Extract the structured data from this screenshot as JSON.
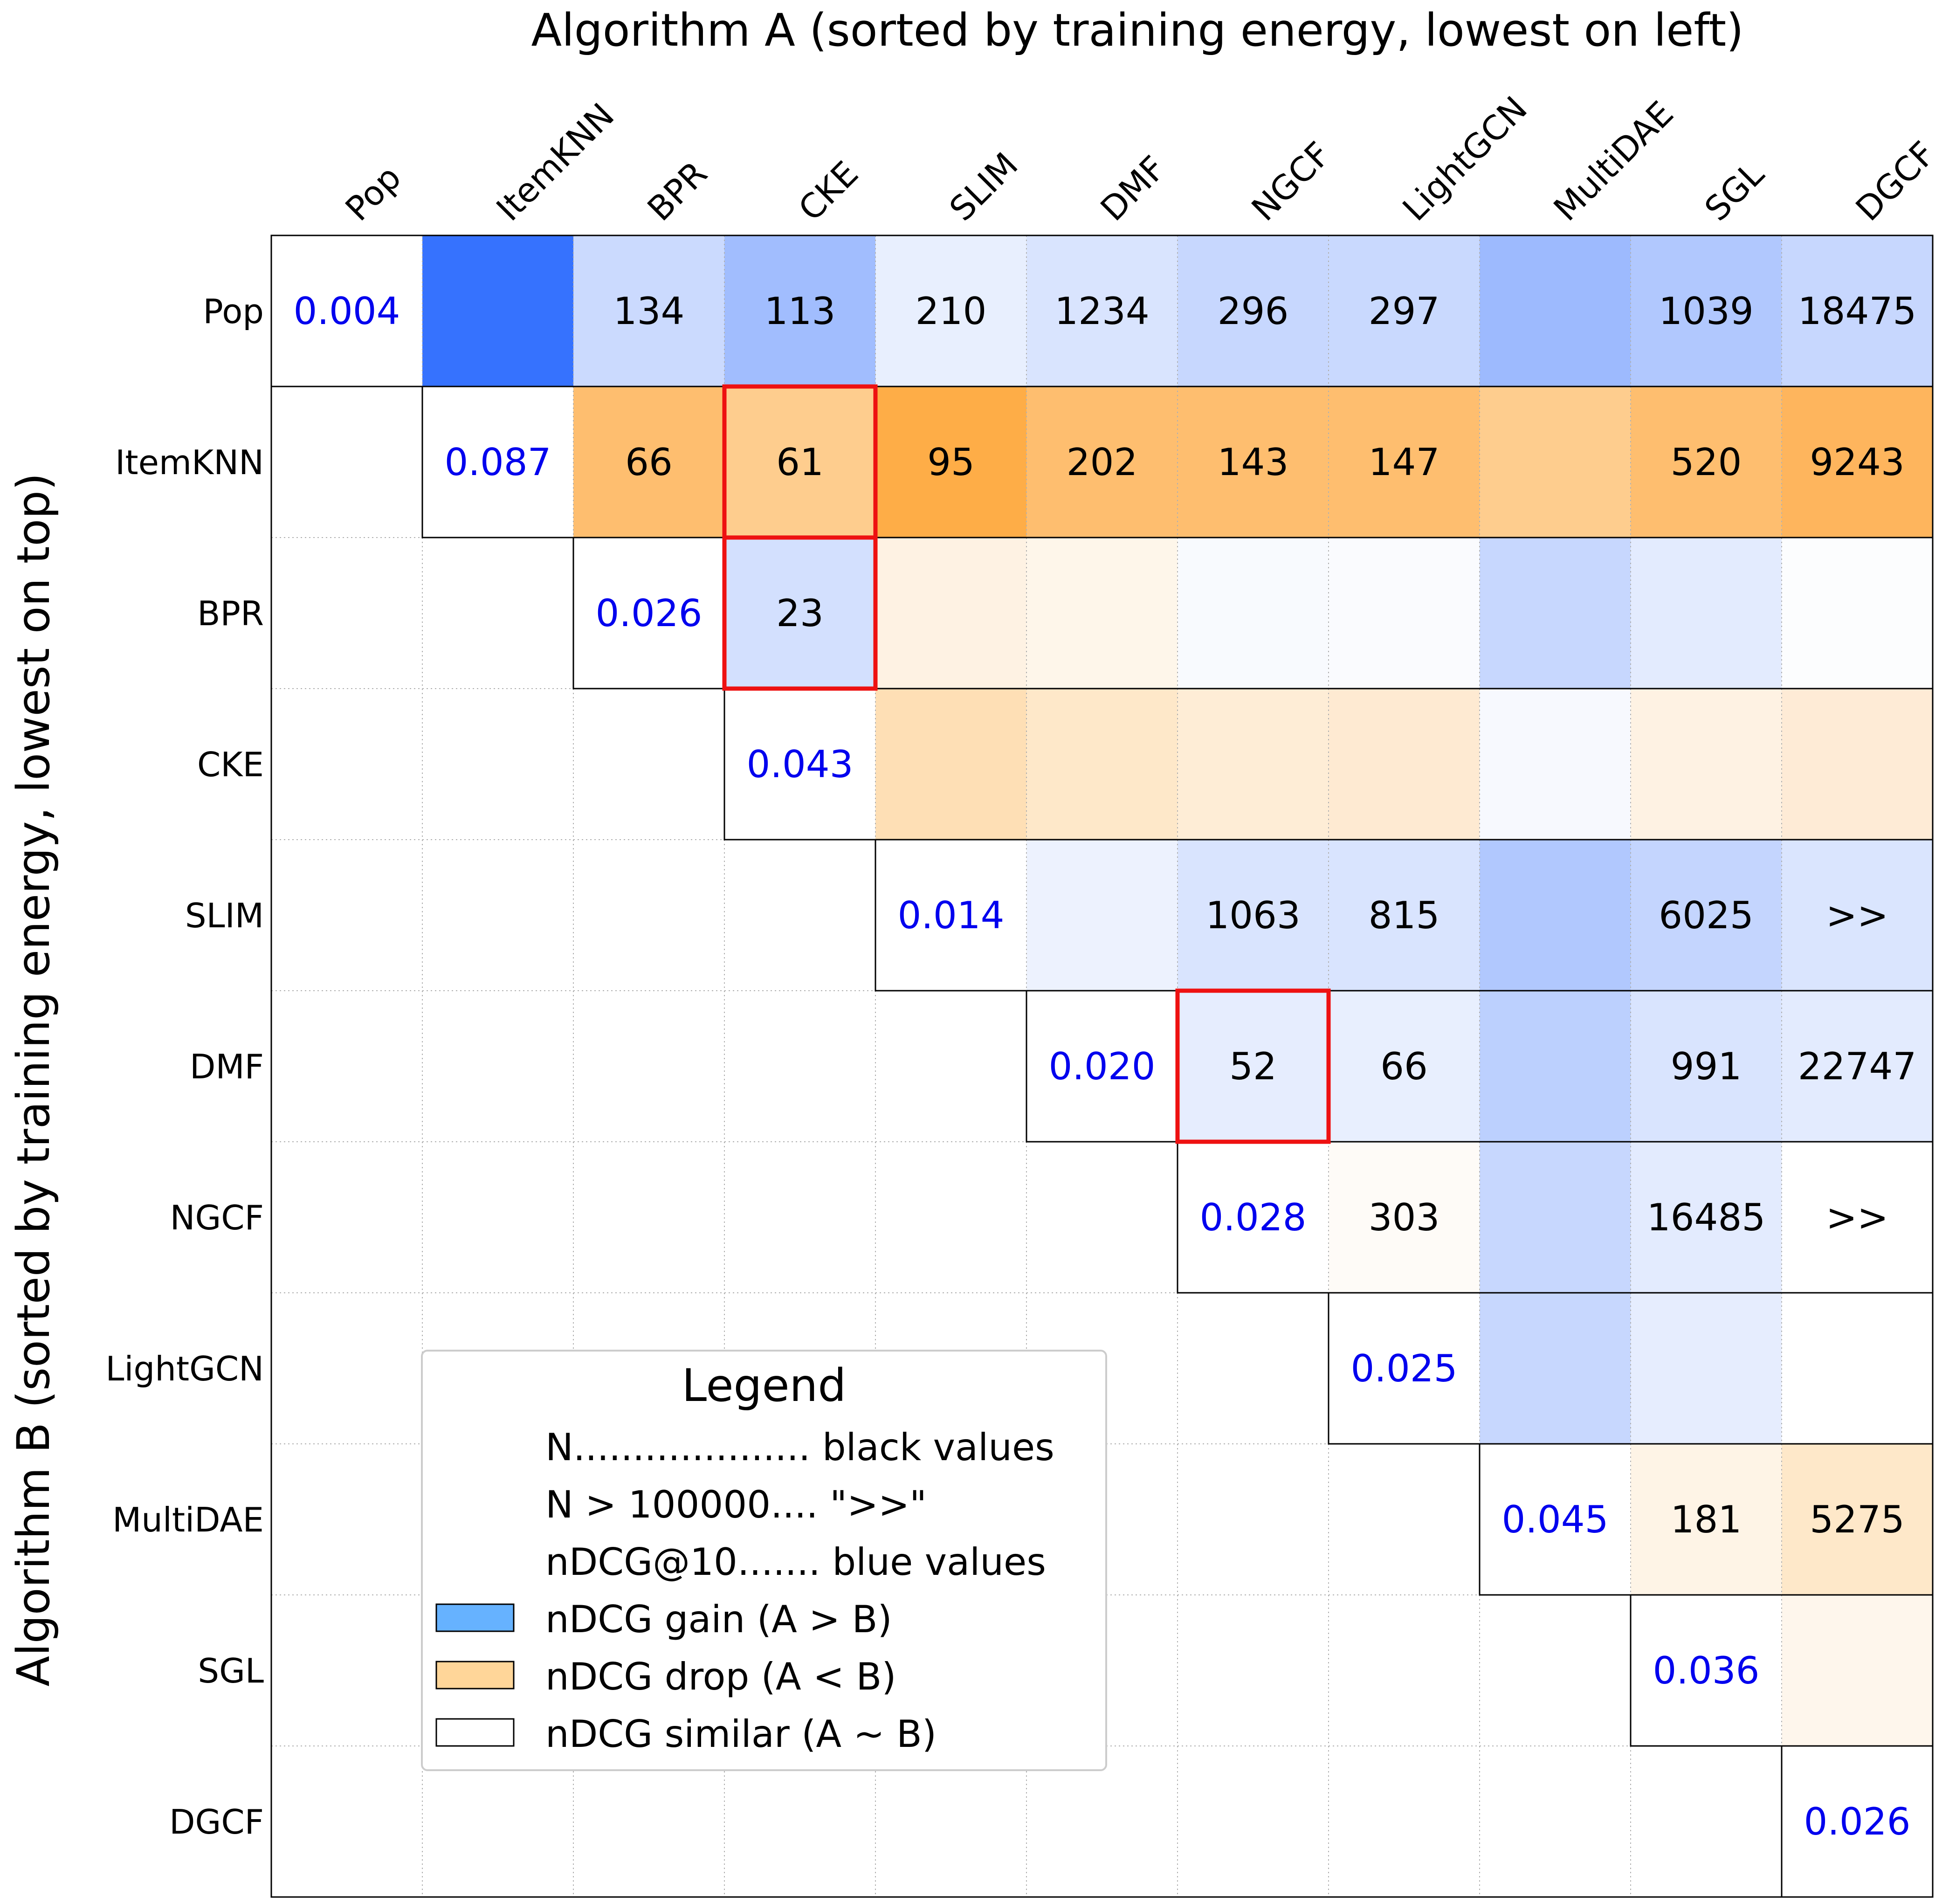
{
  "chart_data": {
    "type": "heatmap",
    "title": "Algorithm A (sorted by training energy, lowest on left)",
    "xlabel": "",
    "ylabel": "Algorithm B (sorted by training energy, lowest on top)",
    "x_categories": [
      "Pop",
      "ItemKNN",
      "BPR",
      "CKE",
      "SLIM",
      "DMF",
      "NGCF",
      "LightGCN",
      "MultiDAE",
      "SGL",
      "DGCF"
    ],
    "y_categories": [
      "Pop",
      "ItemKNN",
      "BPR",
      "CKE",
      "SLIM",
      "DMF",
      "NGCF",
      "LightGCN",
      "MultiDAE",
      "SGL",
      "DGCF"
    ],
    "diagonal_ndcg": [
      "0.004",
      "0.087",
      "0.026",
      "0.043",
      "0.014",
      "0.020",
      "0.028",
      "0.025",
      "0.045",
      "0.036",
      "0.026"
    ],
    "values": [
      [
        null,
        null,
        "134",
        "113",
        "210",
        "1234",
        "296",
        "297",
        null,
        "1039",
        "18475"
      ],
      [
        null,
        null,
        "66",
        "61",
        "95",
        "202",
        "143",
        "147",
        null,
        "520",
        "9243"
      ],
      [
        null,
        null,
        null,
        "23",
        null,
        null,
        null,
        null,
        null,
        null,
        null
      ],
      [
        null,
        null,
        null,
        null,
        null,
        null,
        null,
        null,
        null,
        null,
        null
      ],
      [
        null,
        null,
        null,
        null,
        null,
        null,
        "1063",
        "815",
        null,
        "6025",
        ">>"
      ],
      [
        null,
        null,
        null,
        null,
        null,
        null,
        "52",
        "66",
        null,
        "991",
        "22747"
      ],
      [
        null,
        null,
        null,
        null,
        null,
        null,
        null,
        "303",
        null,
        "16485",
        ">>"
      ],
      [
        null,
        null,
        null,
        null,
        null,
        null,
        null,
        null,
        null,
        null,
        null
      ],
      [
        null,
        null,
        null,
        null,
        null,
        null,
        null,
        null,
        null,
        "181",
        "5275"
      ],
      [
        null,
        null,
        null,
        null,
        null,
        null,
        null,
        null,
        null,
        null,
        null
      ],
      [
        null,
        null,
        null,
        null,
        null,
        null,
        null,
        null,
        null,
        null,
        null
      ]
    ],
    "cell_colors": [
      [
        null,
        "#3672FE",
        "#CBDAFE",
        "#A1BDFE",
        "#E8EFFE",
        "#D9E4FE",
        "#C7D7FE",
        "#C9D9FE",
        "#9DBAFE",
        "#B1C8FE",
        "#C7D7FE"
      ],
      [
        null,
        null,
        "#FEBE6F",
        "#FECD8E",
        "#FEAD47",
        "#FEBE6F",
        "#FEBE6F",
        "#FEBE6F",
        "#FECD8E",
        "#FEBE6F",
        "#FEB55D"
      ],
      [
        null,
        null,
        null,
        "#D3E0FE",
        "#FEF2E3",
        "#FEF6EA",
        "#F8FAFE",
        "#FAFBFE",
        "#C7D7FE",
        "#E3EBFE",
        "#FCFDFE"
      ],
      [
        null,
        null,
        null,
        null,
        "#FEDFB5",
        "#FEE8C9",
        "#FEEDD6",
        "#FEEAD2",
        "#F7F9FE",
        "#FEF2E3",
        "#FEEBD6"
      ],
      [
        null,
        null,
        null,
        null,
        null,
        "#EDF2FE",
        "#D9E4FE",
        "#D9E4FE",
        "#B1C8FE",
        "#C4D5FE",
        "#DAE5FE"
      ],
      [
        null,
        null,
        null,
        null,
        null,
        null,
        "#E6EDFE",
        "#E8EFFE",
        "#BCD0FE",
        "#D9E4FE",
        "#E3EBFE"
      ],
      [
        null,
        null,
        null,
        null,
        null,
        null,
        null,
        "#FEFBF7",
        "#C7D7FE",
        "#E3EBFE",
        "#FFFFFF"
      ],
      [
        null,
        null,
        null,
        null,
        null,
        null,
        null,
        null,
        "#C7D7FE",
        "#E6EDFE",
        "#FFFFFF"
      ],
      [
        null,
        null,
        null,
        null,
        null,
        null,
        null,
        null,
        null,
        "#FEF4E6",
        "#FEE8C9"
      ],
      [
        null,
        null,
        null,
        null,
        null,
        null,
        null,
        null,
        null,
        null,
        "#FEF6EC"
      ],
      [
        null,
        null,
        null,
        null,
        null,
        null,
        null,
        null,
        null,
        null,
        null
      ]
    ],
    "highlighted_cells": [
      [
        1,
        3
      ],
      [
        2,
        3
      ],
      [
        5,
        6
      ]
    ],
    "grid": true,
    "value_color": "#000000",
    "diagonal_color": "#0000EE",
    "highlight_color": "#EE1111",
    "legend": {
      "title": "Legend",
      "placement": "lower-left",
      "text_entries": [
        "N.................... black values",
        "N > 100000.... \">>\"",
        "nDCG@10....... blue values"
      ],
      "patch_entries": [
        {
          "label": "nDCG gain (A > B)",
          "color": "#66B2FF"
        },
        {
          "label": "nDCG drop (A < B)",
          "color": "#FFD699"
        },
        {
          "label": "nDCG similar (A ~ B)",
          "color": "#FFFFFF"
        }
      ]
    }
  }
}
